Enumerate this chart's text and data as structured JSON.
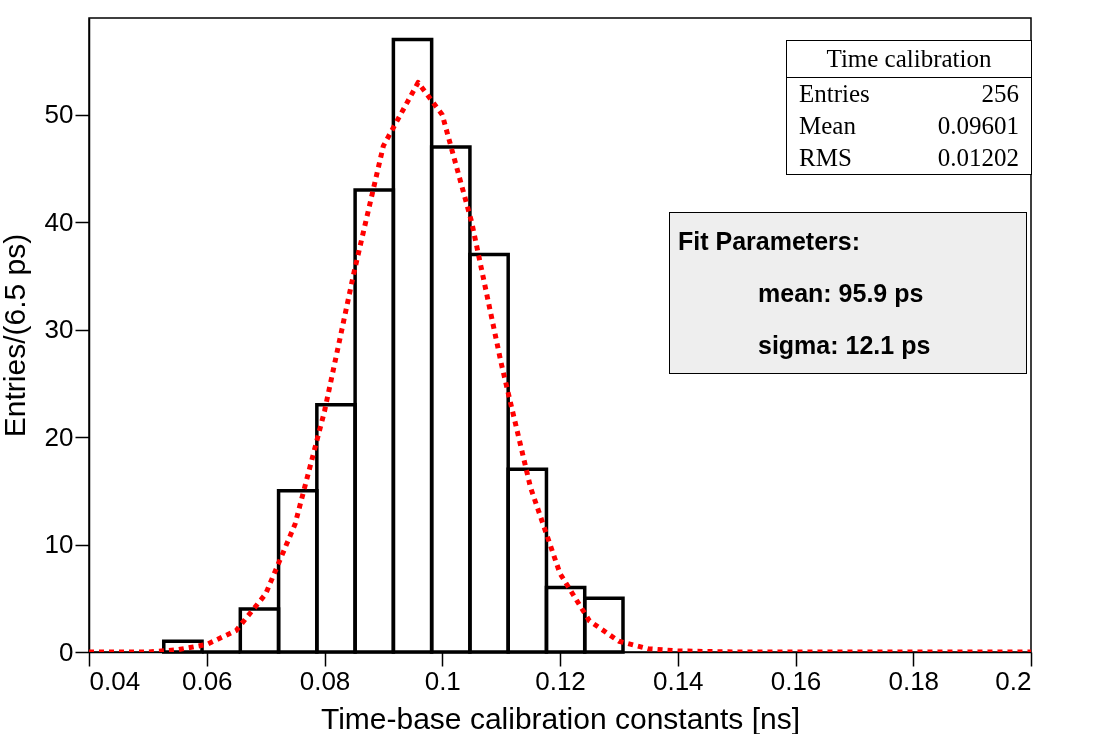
{
  "chart_data": {
    "type": "histogram",
    "xlabel": "Time-base calibration constants [ns]",
    "ylabel": "Entries/(6.5 ps)",
    "bins": [
      0.0527,
      0.0592,
      0.0657,
      0.0722,
      0.0787,
      0.0852,
      0.0917,
      0.0982,
      0.1047,
      0.1112,
      0.1177,
      0.1242,
      0.1307
    ],
    "values": [
      1,
      0,
      4,
      15,
      23,
      43,
      57,
      47,
      37,
      17,
      6,
      5
    ],
    "color": "#000000",
    "series": [
      {
        "type": "line",
        "color": "#ff0000",
        "line_style": "dotted",
        "x": [
          0.04,
          0.05,
          0.055,
          0.06,
          0.065,
          0.07,
          0.075,
          0.08,
          0.085,
          0.09,
          0.0959,
          0.1,
          0.105,
          0.11,
          0.115,
          0.12,
          0.125,
          0.13,
          0.135,
          0.14,
          0.15,
          0.16,
          0.17,
          0.18,
          0.19,
          0.2
        ],
        "values": [
          0,
          0,
          0.2,
          0.7,
          2,
          5.4,
          11.9,
          22.4,
          35.3,
          47.1,
          53,
          50,
          40,
          26.9,
          15.3,
          7.3,
          2.9,
          1,
          0.3,
          0.1,
          0,
          0,
          0,
          0,
          0,
          0
        ]
      }
    ],
    "xlim": [
      0.04,
      0.2
    ],
    "xticks": [
      0.04,
      0.06,
      0.08,
      0.1,
      0.12,
      0.14,
      0.16,
      0.18,
      0.2
    ],
    "ylim": [
      0,
      59
    ],
    "yticks": [
      0,
      10,
      20,
      30,
      40,
      50
    ],
    "grid": false,
    "annotations": [
      "Time calibration",
      "Entries 256",
      "Mean 0.09601",
      "RMS 0.01202",
      "Fit Parameters:",
      "mean: 95.9 ps",
      "sigma: 12.1 ps"
    ]
  }
}
